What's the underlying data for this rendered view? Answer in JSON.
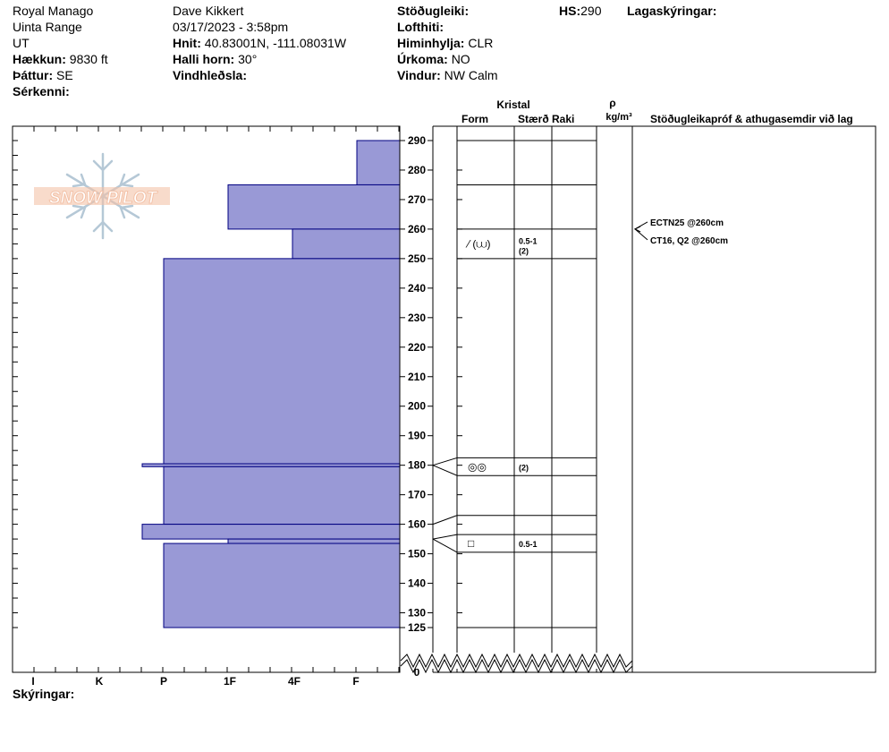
{
  "header": {
    "location": "Royal Manago",
    "range": "Uinta Range",
    "state": "UT",
    "elevation_label": "Hækkun:",
    "elevation_value": "9830 ft",
    "aspect_label": "Þáttur:",
    "aspect_value": "SE",
    "features_label": "Sérkenni:",
    "observer": "Dave Kikkert",
    "datetime": "03/17/2023 - 3:58pm",
    "coords_label": "Hnit:",
    "coords_value": "40.83001N, -111.08031W",
    "slope_label": "Halli horn:",
    "slope_value": "30°",
    "windload_label": "Vindhleðsla:",
    "stability_label": "Stöðugleiki:",
    "airtemp_label": "Lofthiti:",
    "sky_label": "Himinhylja:",
    "sky_value": "CLR",
    "precip_label": "Úrkoma:",
    "precip_value": "NO",
    "wind_label": "Vindur:",
    "wind_value": "NW Calm",
    "hs_label": "HS:",
    "hs_value": "290",
    "layer_notes_label": "Lagaskýringar:"
  },
  "footer": {
    "notes_label": "Skýringar:"
  },
  "logo": {
    "text": "SNOW PILOT"
  },
  "columns": {
    "crystal": "Kristal",
    "form": "Form",
    "size": "Stærð",
    "moisture": "Raki",
    "rho": "ρ",
    "density_unit": "kg/m³",
    "tests": "Stöðugleikapróf & athugasemdir við lag"
  },
  "colors": {
    "hardness_fill": "#9999d6",
    "hardness_stroke": "#000080",
    "logo_orange": "#f2b89a",
    "logo_blue": "#a9bfd0"
  },
  "chart_data": {
    "type": "snow-profile",
    "hs": 290,
    "ylim": [
      0,
      290
    ],
    "y_ticks": [
      0,
      125,
      130,
      140,
      150,
      160,
      170,
      180,
      190,
      200,
      210,
      220,
      230,
      240,
      250,
      260,
      270,
      280,
      290
    ],
    "hardness_scale": [
      "I",
      "K",
      "P",
      "1F",
      "4F",
      "F"
    ],
    "hardness_tick_labels": [
      "F",
      "4F",
      "1F",
      "P",
      "K",
      "I"
    ],
    "layers": [
      {
        "top": 290,
        "bottom": 275,
        "hardness": "F"
      },
      {
        "top": 275,
        "bottom": 260,
        "hardness": "1F"
      },
      {
        "top": 260,
        "bottom": 250,
        "hardness": "4F"
      },
      {
        "top": 250,
        "bottom": 180.5,
        "hardness": "P"
      },
      {
        "top": 180.5,
        "bottom": 179.5,
        "hardness": "P+"
      },
      {
        "top": 179.5,
        "bottom": 160,
        "hardness": "P"
      },
      {
        "top": 160,
        "bottom": 155,
        "hardness": "P+"
      },
      {
        "top": 155,
        "bottom": 153.5,
        "hardness": "1F"
      },
      {
        "top": 153.5,
        "bottom": 125,
        "hardness": "P"
      }
    ],
    "crystal_rows": [
      {
        "from": 250,
        "to": 260,
        "form": "⁄ (⩊)",
        "size": "0.5-1",
        "size2": "(2)"
      },
      {
        "from": 182.5,
        "to": 176.5,
        "form": "◎◎",
        "size": "(2)",
        "size2": ""
      },
      {
        "from": 156.5,
        "to": 150.5,
        "form": "□",
        "size": "0.5-1",
        "size2": ""
      }
    ],
    "grid_lines": [
      290,
      275,
      260,
      250,
      182.5,
      176.5,
      163,
      156.5,
      150.5,
      125
    ],
    "tests": [
      {
        "depth": 260,
        "text": "ECTN25 @260cm"
      },
      {
        "depth": 260,
        "text": "CT16, Q2 @260cm"
      }
    ]
  }
}
